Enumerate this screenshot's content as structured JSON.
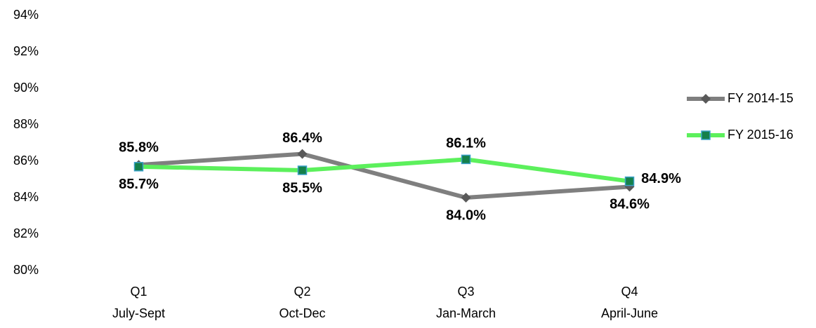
{
  "chart_data": {
    "type": "line",
    "categories": [
      "Q1\nJuly-Sept",
      "Q2\nOct-Dec",
      "Q3\nJan-March",
      "Q4\nApril-June"
    ],
    "series": [
      {
        "name": "FY 2014-15",
        "color": "#7f7f7f",
        "marker": "diamond",
        "marker_color": "#595959",
        "values": [
          85.8,
          86.4,
          84.0,
          84.6
        ],
        "value_labels": [
          "85.8%",
          "86.4%",
          "84.0%",
          "84.6%"
        ]
      },
      {
        "name": "FY 2015-16",
        "color": "#5cf05c",
        "marker": "square",
        "marker_color": "#15804a",
        "values": [
          85.7,
          85.5,
          86.1,
          84.9
        ],
        "value_labels": [
          "85.7%",
          "85.5%",
          "86.1%",
          "84.9%"
        ]
      }
    ],
    "ylim": [
      80,
      94
    ],
    "yticks": [
      {
        "value": 80,
        "label": "80%"
      },
      {
        "value": 82,
        "label": "82%"
      },
      {
        "value": 84,
        "label": "84%"
      },
      {
        "value": 86,
        "label": "86%"
      },
      {
        "value": 88,
        "label": "88%"
      },
      {
        "value": 90,
        "label": "90%"
      },
      {
        "value": 92,
        "label": "92%"
      },
      {
        "value": 94,
        "label": "94%"
      }
    ],
    "grid": false,
    "legend": "right"
  }
}
